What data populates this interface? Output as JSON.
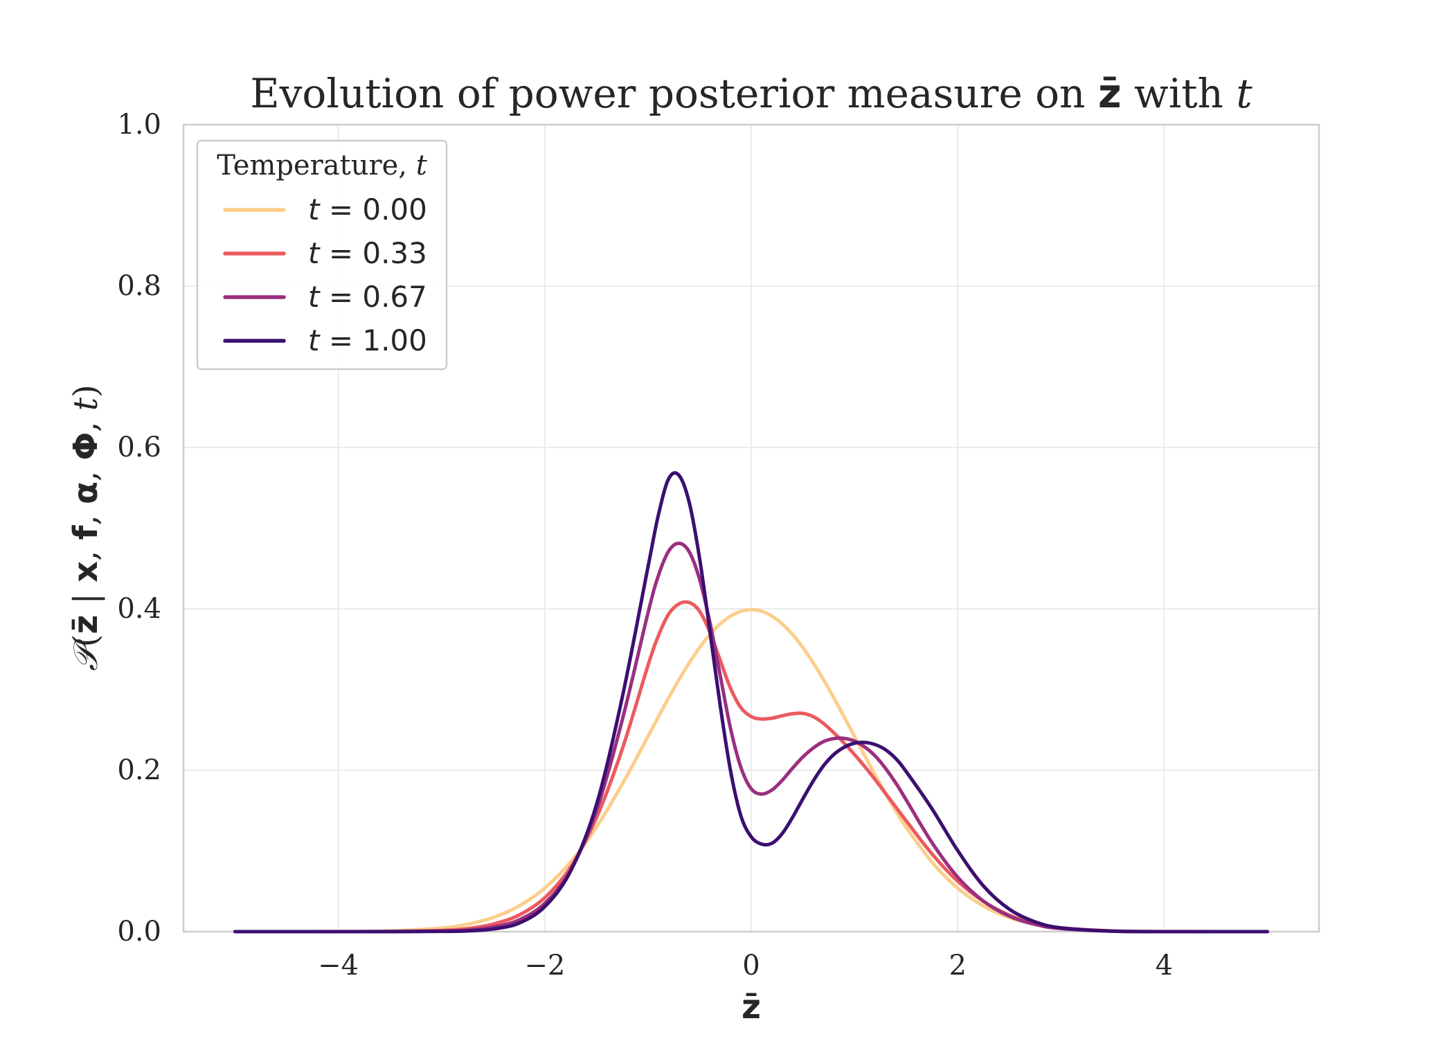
{
  "chart_data": {
    "type": "line",
    "title": "Evolution of power posterior measure on z̄ with t",
    "title_parts": {
      "prefix": "Evolution of power posterior measure on ",
      "var": "z̄",
      "mid": " with ",
      "tvar": "t"
    },
    "xlabel": "z̄",
    "ylabel": "𝒫(z̄ | x, f, α, Φ, t)",
    "ylabel_parts": {
      "p": "𝒫",
      "open": "(",
      "z": "z̄",
      "bar": " | ",
      "x": "x",
      "c1": ", ",
      "f": "f",
      "c2": ", ",
      "a": "α",
      "c3": ", ",
      "phi": "Φ",
      "c4": ", ",
      "t": "t",
      "close": ")"
    },
    "xlim": [
      -5.5,
      5.5
    ],
    "ylim": [
      0,
      1.0
    ],
    "xticks": [
      -4,
      -2,
      0,
      2,
      4
    ],
    "xtick_labels": [
      "−4",
      "−2",
      "0",
      "2",
      "4"
    ],
    "yticks": [
      0.0,
      0.2,
      0.4,
      0.6,
      0.8,
      1.0
    ],
    "ytick_labels": [
      "0.0",
      "0.2",
      "0.4",
      "0.6",
      "0.8",
      "1.0"
    ],
    "grid": true,
    "legend": {
      "title_text": "Temperature, ",
      "title_var": "t",
      "placement": "upper left"
    },
    "x": [
      -5.0,
      -4.5,
      -4.0,
      -3.5,
      -3.0,
      -2.75,
      -2.5,
      -2.25,
      -2.0,
      -1.75,
      -1.5,
      -1.25,
      -1.0,
      -0.9,
      -0.8,
      -0.7,
      -0.6,
      -0.5,
      -0.4,
      -0.3,
      -0.2,
      -0.1,
      0.0,
      0.1,
      0.2,
      0.3,
      0.4,
      0.5,
      0.6,
      0.7,
      0.8,
      0.9,
      1.0,
      1.1,
      1.2,
      1.3,
      1.4,
      1.5,
      1.75,
      2.0,
      2.25,
      2.5,
      2.75,
      3.0,
      3.5,
      4.0,
      4.5,
      5.0
    ],
    "series": [
      {
        "name": "t = 0.00",
        "label_var": "t",
        "label_rest": " = 0.00",
        "color": "#fcce8c",
        "values": [
          0.0,
          0.0,
          0.0001,
          0.0009,
          0.0044,
          0.0091,
          0.0175,
          0.0317,
          0.054,
          0.0863,
          0.1295,
          0.1826,
          0.242,
          0.2661,
          0.2897,
          0.3123,
          0.3332,
          0.3521,
          0.3683,
          0.3814,
          0.391,
          0.397,
          0.3989,
          0.397,
          0.391,
          0.3814,
          0.3683,
          0.3521,
          0.3332,
          0.3123,
          0.2897,
          0.2661,
          0.242,
          0.2179,
          0.1942,
          0.1714,
          0.1497,
          0.1295,
          0.0863,
          0.054,
          0.0317,
          0.0175,
          0.0091,
          0.0044,
          0.0009,
          0.0001,
          0.0,
          0.0
        ]
      },
      {
        "name": "t = 0.33",
        "label_var": "t",
        "label_rest": " = 0.33",
        "color": "#eb5a5f",
        "values": [
          0.0,
          0.0,
          0.0,
          0.0002,
          0.0015,
          0.0038,
          0.0093,
          0.0205,
          0.042,
          0.08,
          0.141,
          0.226,
          0.33,
          0.3665,
          0.3935,
          0.4062,
          0.4078,
          0.397,
          0.371,
          0.336,
          0.3015,
          0.2775,
          0.2665,
          0.2635,
          0.2645,
          0.2675,
          0.27,
          0.2705,
          0.2665,
          0.258,
          0.2465,
          0.2336,
          0.2195,
          0.2045,
          0.1885,
          0.1715,
          0.1545,
          0.1375,
          0.0965,
          0.0625,
          0.0375,
          0.0205,
          0.0102,
          0.0046,
          0.0008,
          0.0001,
          0.0,
          0.0
        ]
      },
      {
        "name": "t = 0.67",
        "label_var": "t",
        "label_rest": " = 0.67",
        "color": "#9a2f7f",
        "values": [
          0.0,
          0.0,
          0.0,
          0.0001,
          0.0007,
          0.0019,
          0.0056,
          0.0145,
          0.035,
          0.076,
          0.15,
          0.262,
          0.395,
          0.441,
          0.4715,
          0.4812,
          0.4705,
          0.4365,
          0.383,
          0.317,
          0.2515,
          0.2035,
          0.177,
          0.1705,
          0.1755,
          0.1875,
          0.2025,
          0.2165,
          0.2275,
          0.2355,
          0.2392,
          0.2395,
          0.2362,
          0.2288,
          0.2178,
          0.2025,
          0.1842,
          0.1635,
          0.1105,
          0.0675,
          0.0378,
          0.0192,
          0.0089,
          0.0037,
          0.0005,
          0.0,
          0.0,
          0.0
        ]
      },
      {
        "name": "t = 1.00",
        "label_var": "t",
        "label_rest": " = 1.00",
        "color": "#3b0f70",
        "values": [
          0.0,
          0.0,
          0.0,
          0.0,
          0.0003,
          0.0009,
          0.0033,
          0.0105,
          0.031,
          0.075,
          0.157,
          0.29,
          0.452,
          0.516,
          0.5612,
          0.5655,
          0.5315,
          0.4625,
          0.372,
          0.2795,
          0.199,
          0.1435,
          0.1175,
          0.1085,
          0.1095,
          0.1215,
          0.1415,
          0.1645,
          0.1865,
          0.2055,
          0.2195,
          0.2285,
          0.2335,
          0.2345,
          0.2318,
          0.2255,
          0.2145,
          0.1985,
          0.1525,
          0.1005,
          0.0565,
          0.0278,
          0.0121,
          0.0047,
          0.0006,
          0.0,
          0.0,
          0.0
        ]
      }
    ]
  }
}
